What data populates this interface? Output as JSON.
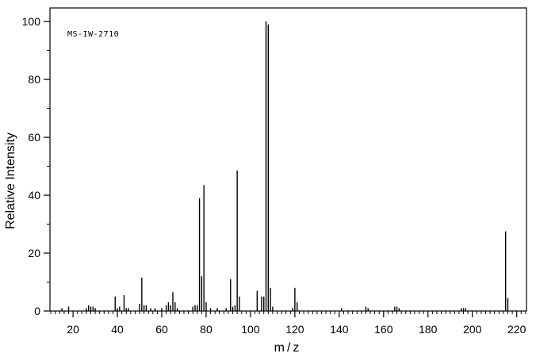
{
  "chart_data": {
    "type": "bar",
    "subtype": "mass-spectrum-stick-plot",
    "title": "MS-IW-2710",
    "xlabel": "m/z",
    "ylabel": "Relative Intensity",
    "xlim": [
      9.6,
      224.4
    ],
    "ylim": [
      0,
      104.7
    ],
    "x_major_tick_step": 20,
    "x_minor_tick_step": 2,
    "x_tick_labels": [
      20,
      40,
      60,
      80,
      100,
      120,
      140,
      160,
      180,
      200,
      220
    ],
    "y_major_tick_step": 20,
    "y_minor_tick_step": 10,
    "y_tick_labels": [
      0,
      20,
      40,
      60,
      80,
      100
    ],
    "grid": false,
    "legend": "none",
    "peaks": [
      [
        15,
        1
      ],
      [
        18,
        1.5
      ],
      [
        26,
        1
      ],
      [
        27,
        2
      ],
      [
        28,
        1.5
      ],
      [
        29,
        1.5
      ],
      [
        30,
        1
      ],
      [
        39,
        5
      ],
      [
        40,
        1
      ],
      [
        41,
        1.5
      ],
      [
        43,
        5.5
      ],
      [
        44,
        1
      ],
      [
        45,
        1
      ],
      [
        50,
        2.5
      ],
      [
        51,
        11.5
      ],
      [
        52,
        2
      ],
      [
        53,
        2
      ],
      [
        55,
        1
      ],
      [
        57,
        1
      ],
      [
        60,
        1
      ],
      [
        62,
        2
      ],
      [
        63,
        3
      ],
      [
        64,
        2
      ],
      [
        65,
        6.5
      ],
      [
        66,
        3
      ],
      [
        67,
        1
      ],
      [
        74,
        1.5
      ],
      [
        75,
        2
      ],
      [
        76,
        2
      ],
      [
        77,
        39
      ],
      [
        78,
        12
      ],
      [
        79,
        43.5
      ],
      [
        80,
        3
      ],
      [
        82,
        1
      ],
      [
        85,
        1
      ],
      [
        89,
        1
      ],
      [
        91,
        11
      ],
      [
        92,
        1.5
      ],
      [
        93,
        2
      ],
      [
        94,
        48.5
      ],
      [
        95,
        5
      ],
      [
        103,
        7
      ],
      [
        105,
        5
      ],
      [
        106,
        5
      ],
      [
        107,
        100
      ],
      [
        108,
        99
      ],
      [
        109,
        8
      ],
      [
        110,
        1.5
      ],
      [
        119,
        1
      ],
      [
        120,
        8
      ],
      [
        121,
        3
      ],
      [
        141,
        1
      ],
      [
        152,
        1.5
      ],
      [
        153,
        1
      ],
      [
        165,
        1.5
      ],
      [
        166,
        1.5
      ],
      [
        167,
        1
      ],
      [
        195,
        1
      ],
      [
        196,
        1
      ],
      [
        197,
        1
      ],
      [
        215,
        27.5
      ],
      [
        216,
        4.5
      ]
    ]
  },
  "colors": {
    "line": "#000000",
    "background": "#ffffff"
  }
}
